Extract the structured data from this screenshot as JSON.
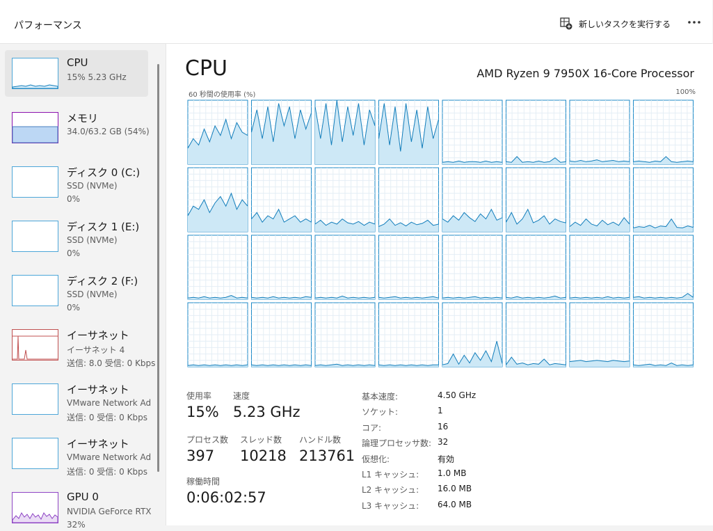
{
  "header": {
    "title": "パフォーマンス",
    "run_task": "新しいタスクを実行する"
  },
  "sidebar": [
    {
      "name": "CPU",
      "lines": [
        "15%  5.23 GHz"
      ]
    },
    {
      "name": "メモリ",
      "lines": [
        "34.0/63.2 GB (54%)"
      ]
    },
    {
      "name": "ディスク 0 (C:)",
      "lines": [
        "SSD (NVMe)",
        "0%"
      ]
    },
    {
      "name": "ディスク 1 (E:)",
      "lines": [
        "SSD (NVMe)",
        "0%"
      ]
    },
    {
      "name": "ディスク 2 (F:)",
      "lines": [
        "SSD (NVMe)",
        "0%"
      ]
    },
    {
      "name": "イーサネット",
      "lines": [
        "イーサネット 4",
        "送信: 8.0  受信: 0 Kbps"
      ]
    },
    {
      "name": "イーサネット",
      "lines": [
        "VMware Network Ad",
        "送信: 0  受信: 0 Kbps"
      ]
    },
    {
      "name": "イーサネット",
      "lines": [
        "VMware Network Ad",
        "送信: 0  受信: 0 Kbps"
      ]
    },
    {
      "name": "GPU 0",
      "lines": [
        "NVIDIA GeForce RTX",
        "32%"
      ]
    }
  ],
  "main": {
    "title": "CPU",
    "processor": "AMD Ryzen 9 7950X 16-Core Processor",
    "graph_label": "60 秒間の使用率 (%)",
    "graph_max": "100%",
    "cores": [
      [
        25,
        40,
        30,
        55,
        35,
        60,
        45,
        70,
        40,
        65,
        50,
        45
      ],
      [
        50,
        85,
        40,
        90,
        35,
        95,
        60,
        90,
        40,
        85,
        55,
        80
      ],
      [
        90,
        40,
        95,
        30,
        100,
        35,
        90,
        45,
        95,
        30,
        85,
        60
      ],
      [
        40,
        95,
        30,
        90,
        20,
        95,
        35,
        85,
        25,
        90,
        40,
        70
      ],
      [
        3,
        4,
        3,
        5,
        3,
        4,
        4,
        3,
        5,
        3,
        4,
        3
      ],
      [
        4,
        3,
        12,
        3,
        4,
        3,
        5,
        3,
        4,
        10,
        3,
        4
      ],
      [
        5,
        4,
        6,
        4,
        5,
        7,
        4,
        5,
        6,
        4,
        5,
        4
      ],
      [
        4,
        5,
        4,
        3,
        5,
        4,
        12,
        4,
        3,
        4,
        5,
        4
      ],
      [
        25,
        40,
        35,
        50,
        30,
        45,
        55,
        40,
        60,
        35,
        50,
        40
      ],
      [
        20,
        30,
        15,
        25,
        20,
        35,
        15,
        20,
        25,
        15,
        20,
        15
      ],
      [
        12,
        18,
        10,
        15,
        12,
        20,
        14,
        12,
        16,
        10,
        15,
        12
      ],
      [
        8,
        12,
        20,
        10,
        14,
        9,
        15,
        11,
        13,
        18,
        10,
        12
      ],
      [
        20,
        15,
        25,
        18,
        30,
        22,
        16,
        28,
        20,
        35,
        18,
        22
      ],
      [
        15,
        30,
        12,
        20,
        35,
        14,
        18,
        25,
        12,
        20,
        16,
        14
      ],
      [
        8,
        15,
        10,
        20,
        12,
        9,
        18,
        11,
        15,
        10,
        22,
        12
      ],
      [
        6,
        8,
        7,
        10,
        6,
        9,
        8,
        20,
        7,
        6,
        9,
        7
      ],
      [
        2,
        3,
        2,
        4,
        2,
        3,
        2,
        3,
        6,
        2,
        3,
        2
      ],
      [
        3,
        2,
        3,
        2,
        4,
        2,
        3,
        2,
        3,
        2,
        4,
        3
      ],
      [
        2,
        3,
        2,
        3,
        2,
        5,
        2,
        3,
        2,
        3,
        2,
        3
      ],
      [
        3,
        2,
        3,
        4,
        2,
        3,
        2,
        3,
        2,
        3,
        4,
        2
      ],
      [
        2,
        3,
        2,
        3,
        2,
        3,
        4,
        2,
        3,
        2,
        3,
        2
      ],
      [
        3,
        2,
        4,
        2,
        3,
        2,
        3,
        2,
        3,
        5,
        2,
        3
      ],
      [
        2,
        3,
        2,
        3,
        2,
        3,
        2,
        4,
        2,
        3,
        2,
        3
      ],
      [
        3,
        4,
        2,
        3,
        2,
        3,
        2,
        3,
        2,
        3,
        9,
        3
      ],
      [
        2,
        3,
        2,
        3,
        2,
        3,
        2,
        3,
        2,
        3,
        2,
        3
      ],
      [
        3,
        2,
        3,
        2,
        3,
        2,
        3,
        2,
        3,
        2,
        3,
        2
      ],
      [
        2,
        3,
        2,
        3,
        4,
        2,
        3,
        2,
        3,
        2,
        3,
        2
      ],
      [
        3,
        2,
        3,
        2,
        3,
        2,
        3,
        2,
        3,
        2,
        3,
        3
      ],
      [
        3,
        5,
        20,
        4,
        18,
        6,
        22,
        10,
        25,
        8,
        40,
        5
      ],
      [
        3,
        15,
        4,
        6,
        3,
        5,
        4,
        12,
        3,
        5,
        4,
        3
      ],
      [
        8,
        9,
        10,
        8,
        9,
        10,
        9,
        8,
        10,
        9,
        8,
        9
      ],
      [
        3,
        2,
        3,
        4,
        2,
        3,
        2,
        6,
        2,
        3,
        2,
        3
      ]
    ],
    "stats": [
      {
        "label": "使用率",
        "value": "15%"
      },
      {
        "label": "速度",
        "value": "5.23 GHz"
      },
      {
        "label": "プロセス数",
        "value": "397"
      },
      {
        "label": "スレッド数",
        "value": "10218"
      },
      {
        "label": "ハンドル数",
        "value": "213761"
      },
      {
        "label": "稼働時間",
        "value": "0:06:02:57"
      }
    ],
    "specs": [
      {
        "label": "基本速度:",
        "value": "4.50 GHz"
      },
      {
        "label": "ソケット:",
        "value": "1"
      },
      {
        "label": "コア:",
        "value": "16"
      },
      {
        "label": "論理プロセッサ数:",
        "value": "32"
      },
      {
        "label": "仮想化:",
        "value": "有効"
      },
      {
        "label": "L1 キャッシュ:",
        "value": "1.0 MB"
      },
      {
        "label": "L2 キャッシュ:",
        "value": "16.0 MB"
      },
      {
        "label": "L3 キャッシュ:",
        "value": "64.0 MB"
      }
    ]
  }
}
